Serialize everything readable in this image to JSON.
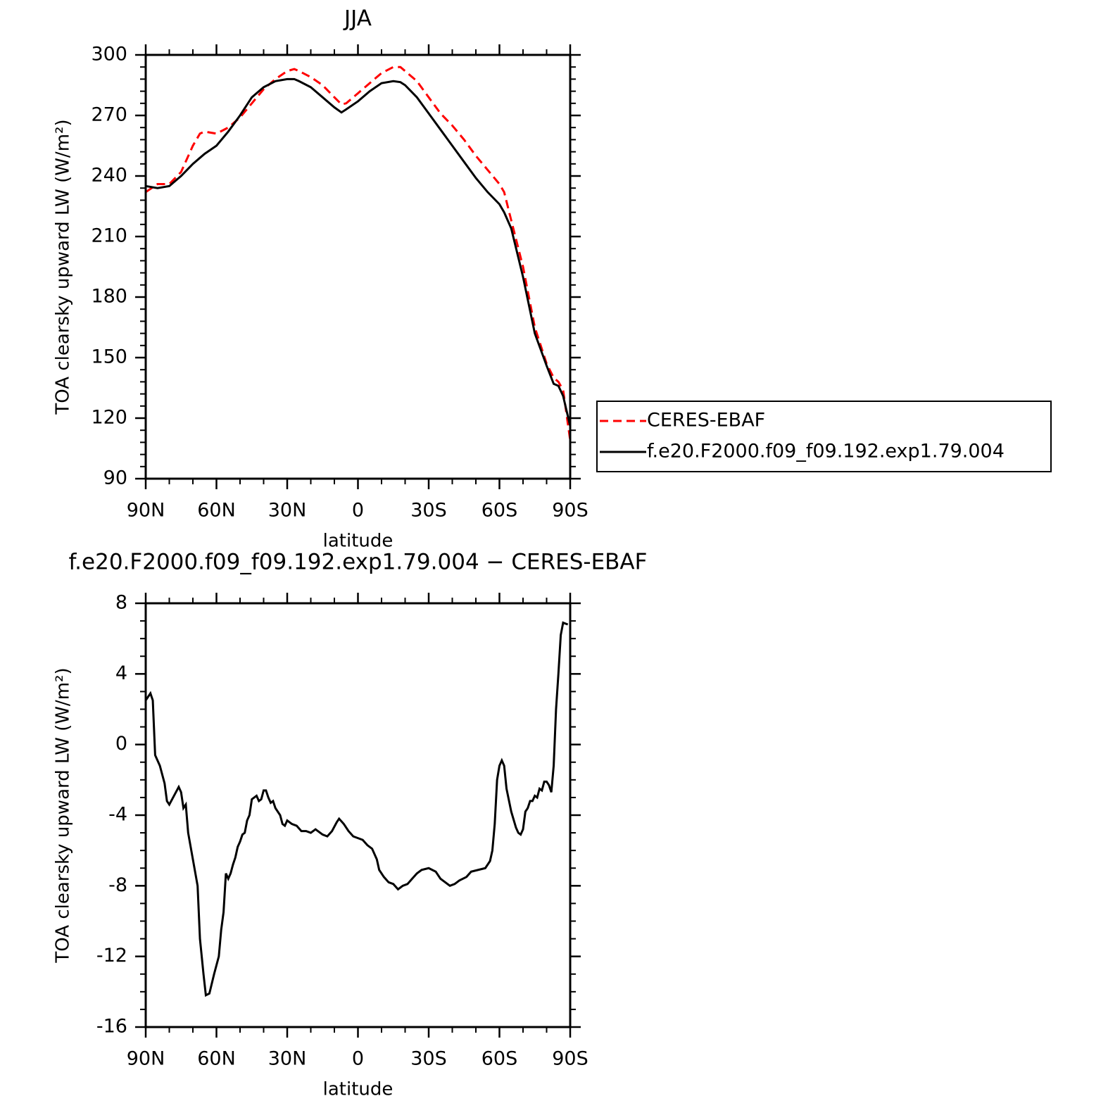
{
  "chart_data": [
    {
      "type": "line",
      "title": "JJA",
      "xlabel": "latitude",
      "ylabel": "TOA clearsky upward LW (W/m²)",
      "xlim": [
        90,
        -90
      ],
      "xticks": [
        {
          "value": 90,
          "label": "90N"
        },
        {
          "value": 60,
          "label": "60N"
        },
        {
          "value": 30,
          "label": "30N"
        },
        0,
        {
          "value": -30,
          "label": "30S"
        },
        {
          "value": -60,
          "label": "60S"
        },
        {
          "value": -90,
          "label": "90S"
        }
      ],
      "ylim": [
        90,
        300
      ],
      "yticks": [
        90,
        120,
        150,
        180,
        210,
        240,
        270,
        300
      ],
      "legend": "right",
      "x": [
        90,
        85,
        80,
        75,
        70,
        67,
        65,
        60,
        55,
        50,
        45,
        40,
        35,
        30,
        27,
        25,
        20,
        15,
        10,
        7,
        5,
        0,
        -5,
        -10,
        -15,
        -18,
        -20,
        -25,
        -30,
        -35,
        -40,
        -45,
        -50,
        -55,
        -60,
        -62,
        -65,
        -70,
        -75,
        -80,
        -83,
        -85,
        -87,
        -90
      ],
      "series": [
        {
          "name": "CERES-EBAF",
          "color": "#ff0000",
          "line_style": "dashed",
          "values": [
            232,
            236,
            236,
            242,
            255,
            261,
            262,
            261,
            264,
            269,
            276,
            283,
            288,
            292,
            293,
            292,
            289,
            285,
            279,
            275.5,
            276,
            281,
            286,
            291,
            294,
            294,
            292,
            287,
            279,
            271,
            265,
            258,
            250,
            243,
            236,
            232,
            218,
            195,
            165,
            147,
            140,
            138,
            134,
            109
          ]
        },
        {
          "name": "f.e20.F2000.f09_f09.192.exp1.79.004",
          "color": "#000000",
          "line_style": "solid",
          "values": [
            235,
            234,
            235,
            240,
            246,
            249,
            251,
            255,
            262,
            270,
            279,
            284,
            287,
            288,
            288,
            287,
            284,
            279,
            274,
            271.5,
            273,
            277,
            282,
            286,
            287,
            286.5,
            285,
            279,
            271,
            263,
            255,
            247,
            239,
            232,
            226,
            222,
            214,
            190,
            162,
            146,
            137,
            136,
            131,
            116
          ]
        }
      ]
    },
    {
      "type": "line",
      "title": "f.e20.F2000.f09_f09.192.exp1.79.004 − CERES-EBAF",
      "xlabel": "latitude",
      "ylabel": "TOA clearsky upward LW (W/m²)",
      "xlim": [
        90,
        -90
      ],
      "xticks": [
        {
          "value": 90,
          "label": "90N"
        },
        {
          "value": 60,
          "label": "60N"
        },
        {
          "value": 30,
          "label": "30N"
        },
        0,
        {
          "value": -30,
          "label": "30S"
        },
        {
          "value": -60,
          "label": "60S"
        },
        {
          "value": -90,
          "label": "90S"
        }
      ],
      "ylim": [
        -16,
        8
      ],
      "yticks": [
        -16,
        -12,
        -8,
        -4,
        0,
        4,
        8
      ],
      "x": [
        90,
        88,
        87,
        86,
        84,
        82,
        81,
        80,
        78,
        76,
        75,
        74,
        73,
        72,
        70,
        68,
        67,
        65.5,
        64.5,
        63,
        61,
        59,
        58,
        57,
        56,
        55,
        54,
        53,
        52,
        51,
        50,
        49,
        48,
        47,
        46,
        45,
        44,
        43,
        42,
        41,
        40,
        39,
        38,
        37,
        36,
        35,
        33,
        32,
        31,
        30,
        28,
        26,
        24,
        22,
        20,
        18,
        16,
        15,
        13,
        11,
        9,
        8,
        6,
        4,
        2,
        0,
        -2,
        -4,
        -6,
        -8,
        -9,
        -11,
        -13,
        -15,
        -17,
        -19,
        -21,
        -23,
        -25,
        -27,
        -30,
        -33,
        -35,
        -37,
        -39,
        -41,
        -43,
        -46,
        -48,
        -51,
        -54,
        -56,
        -57,
        -58,
        -59,
        -60,
        -61,
        -62,
        -63,
        -65,
        -67,
        -68,
        -69,
        -70,
        -71,
        -72,
        -73,
        -74,
        -75,
        -76,
        -77,
        -78,
        -79,
        -80,
        -81,
        -82,
        -83,
        -84,
        -85,
        -86,
        -87,
        -89
      ],
      "series": [
        {
          "color": "#000000",
          "line_style": "solid",
          "values": [
            2.5,
            2.9,
            2.5,
            -0.6,
            -1.2,
            -2.2,
            -3.2,
            -3.4,
            -2.9,
            -2.4,
            -2.7,
            -3.6,
            -3.4,
            -5,
            -6.5,
            -8,
            -11,
            -13,
            -14.2,
            -14.1,
            -13,
            -12,
            -10.5,
            -9.5,
            -7.3,
            -7.6,
            -7.3,
            -6.8,
            -6.4,
            -5.8,
            -5.5,
            -5.1,
            -5.0,
            -4.3,
            -4,
            -3.1,
            -3,
            -2.9,
            -3.2,
            -3.1,
            -2.6,
            -2.6,
            -3.0,
            -3.3,
            -3.2,
            -3.6,
            -4.0,
            -4.5,
            -4.6,
            -4.3,
            -4.5,
            -4.6,
            -4.9,
            -4.9,
            -5.0,
            -4.8,
            -5.0,
            -5.1,
            -5.2,
            -4.9,
            -4.4,
            -4.2,
            -4.5,
            -4.9,
            -5.2,
            -5.3,
            -5.4,
            -5.7,
            -5.9,
            -6.5,
            -7.1,
            -7.5,
            -7.8,
            -7.9,
            -8.2,
            -8.0,
            -7.9,
            -7.6,
            -7.3,
            -7.1,
            -7.0,
            -7.2,
            -7.6,
            -7.8,
            -8.0,
            -7.9,
            -7.7,
            -7.5,
            -7.2,
            -7.1,
            -7.0,
            -6.6,
            -6.0,
            -4.5,
            -2.0,
            -1.2,
            -0.9,
            -1.2,
            -2.5,
            -3.8,
            -4.7,
            -5.0,
            -5.1,
            -4.8,
            -3.8,
            -3.6,
            -3.2,
            -3.2,
            -2.9,
            -3.0,
            -2.5,
            -2.6,
            -2.1,
            -2.1,
            -2.3,
            -2.7,
            -1.2,
            2,
            4,
            6.2,
            6.9,
            6.8
          ]
        }
      ]
    }
  ]
}
